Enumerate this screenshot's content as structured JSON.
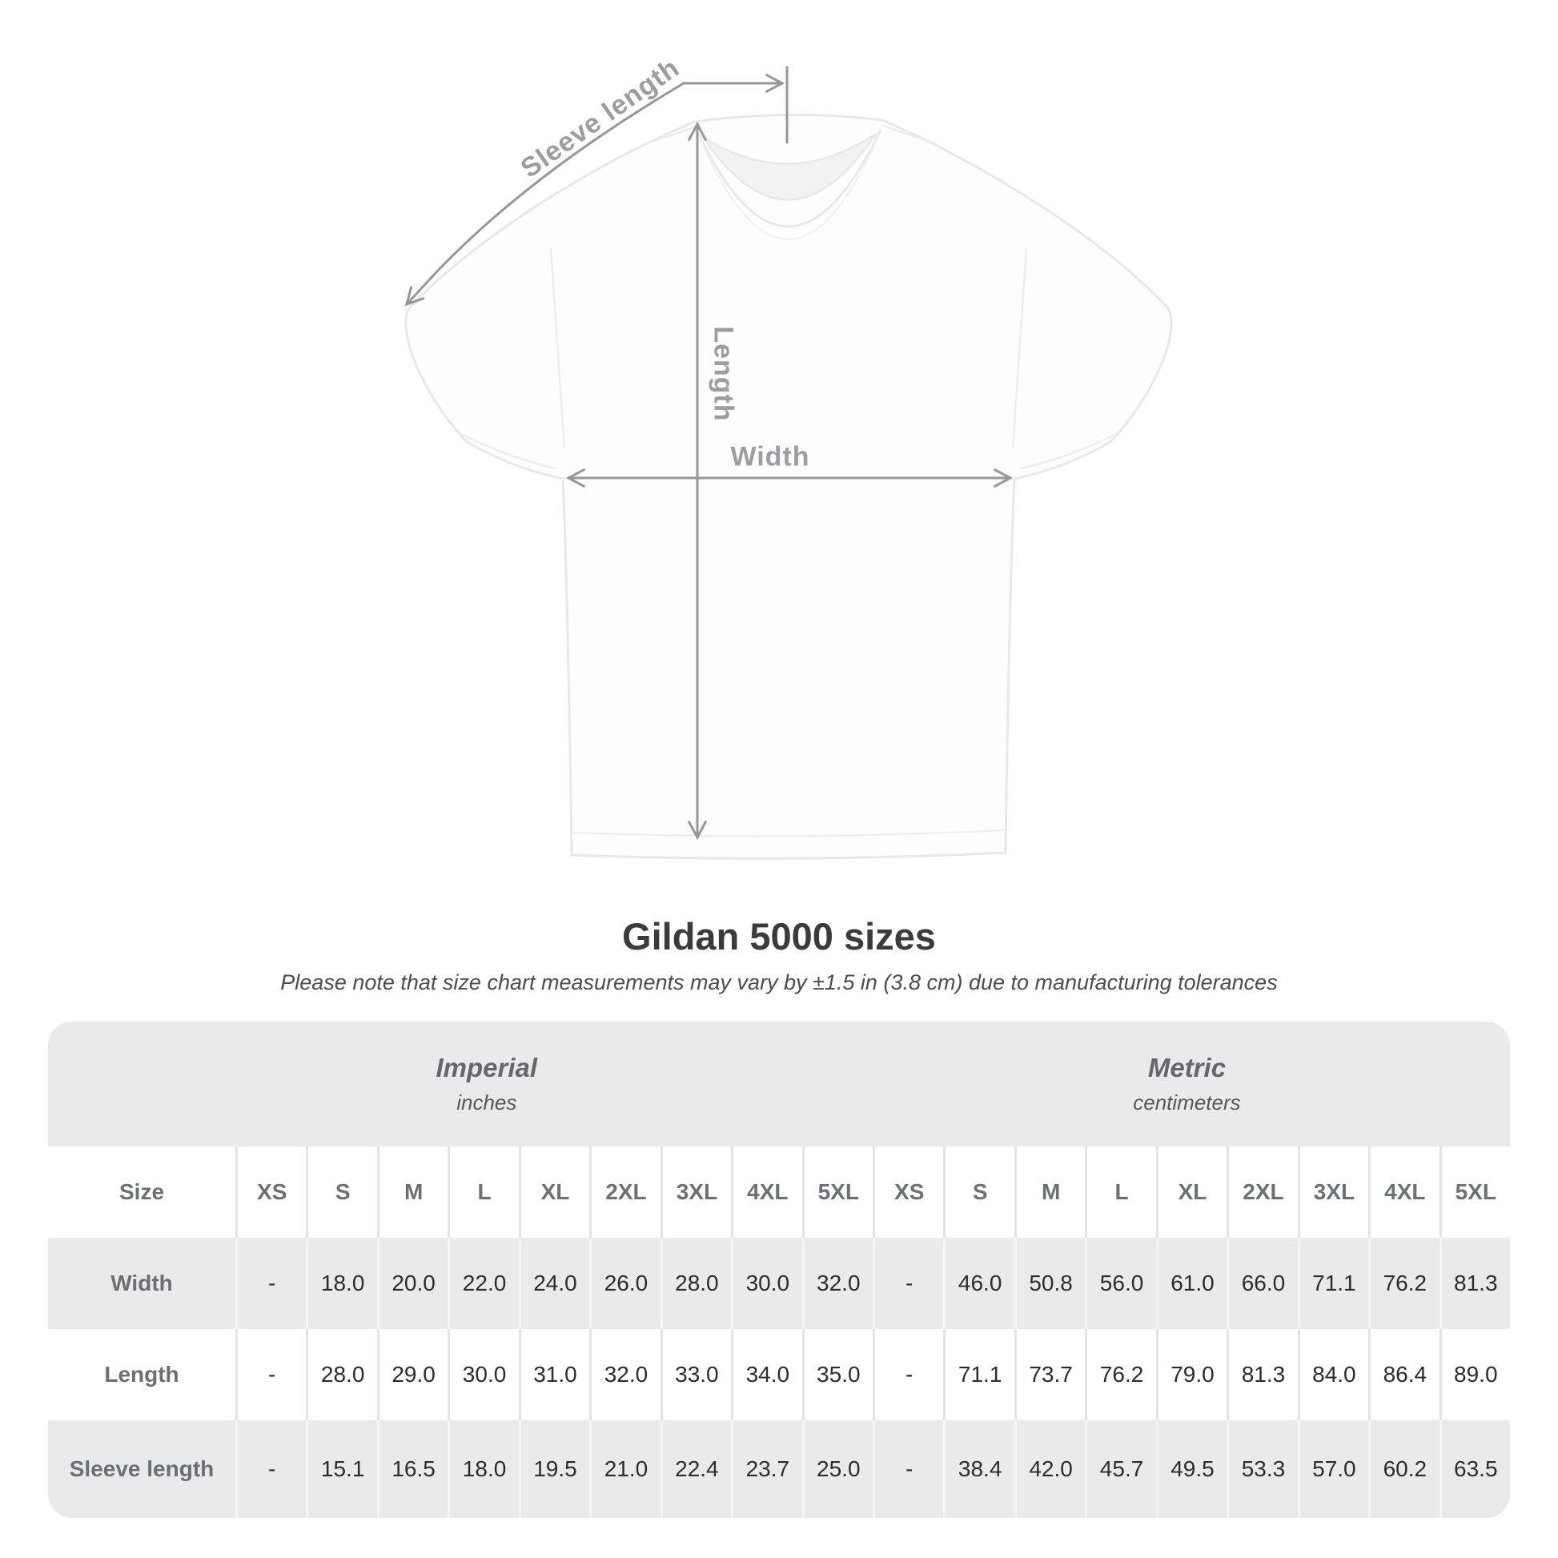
{
  "diagram": {
    "sleeve_length_label": "Sleeve length",
    "length_label": "Length",
    "width_label": "Width",
    "line_color": "#94989c",
    "label_color": "#9a9ea2"
  },
  "title": "Gildan 5000 sizes",
  "subtitle": "Please note that size chart measurements may vary by ±1.5 in (3.8 cm) due to manufacturing tolerances",
  "table": {
    "corner_label": "Size",
    "groups": [
      {
        "label": "Imperial",
        "unit": "inches"
      },
      {
        "label": "Metric",
        "unit": "centimeters"
      }
    ],
    "columns": [
      "XS",
      "S",
      "M",
      "L",
      "XL",
      "2XL",
      "3XL",
      "4XL",
      "5XL",
      "XS",
      "S",
      "M",
      "L",
      "XL",
      "2XL",
      "3XL",
      "4XL",
      "5XL"
    ],
    "rows": [
      {
        "label": "Width",
        "values": [
          "-",
          "18.0",
          "20.0",
          "22.0",
          "24.0",
          "26.0",
          "28.0",
          "30.0",
          "32.0",
          "-",
          "46.0",
          "50.8",
          "56.0",
          "61.0",
          "66.0",
          "71.1",
          "76.2",
          "81.3"
        ]
      },
      {
        "label": "Length",
        "values": [
          "-",
          "28.0",
          "29.0",
          "30.0",
          "31.0",
          "32.0",
          "33.0",
          "34.0",
          "35.0",
          "-",
          "71.1",
          "73.7",
          "76.2",
          "79.0",
          "81.3",
          "84.0",
          "86.4",
          "89.0"
        ]
      },
      {
        "label": "Sleeve length",
        "values": [
          "-",
          "15.1",
          "16.5",
          "18.0",
          "19.5",
          "21.0",
          "22.4",
          "23.7",
          "25.0",
          "-",
          "38.4",
          "42.0",
          "45.7",
          "49.5",
          "53.3",
          "57.0",
          "60.2",
          "63.5"
        ]
      }
    ],
    "colors": {
      "band_gray": "#e9eaeb",
      "label_gray": "#6b7074",
      "value_color": "#2b2c2e"
    }
  }
}
